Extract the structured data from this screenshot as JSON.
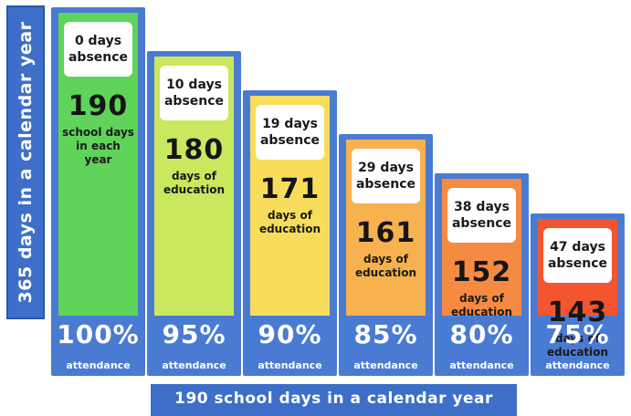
{
  "chart_data": {
    "type": "bar",
    "y_axis_label": "365 days in a calendar year",
    "x_axis_label": "190 school days in a calendar year",
    "school_days_label": "school days in each year",
    "education_label": "days of education",
    "attendance_label": "attendance",
    "ylim": [
      0,
      190
    ],
    "bars": [
      {
        "absence": "0 days absence",
        "days": 190,
        "percent": "100%",
        "color": "#5fd35a"
      },
      {
        "absence": "10 days absence",
        "days": 180,
        "percent": "95%",
        "color": "#c9e85e"
      },
      {
        "absence": "19 days absence",
        "days": 171,
        "percent": "90%",
        "color": "#f7dd5b"
      },
      {
        "absence": "29 days absence",
        "days": 161,
        "percent": "85%",
        "color": "#f8b14f"
      },
      {
        "absence": "38 days absence",
        "days": 152,
        "percent": "80%",
        "color": "#f58a43"
      },
      {
        "absence": "47 days absence",
        "days": 143,
        "percent": "75%",
        "color": "#f2552f"
      }
    ]
  }
}
